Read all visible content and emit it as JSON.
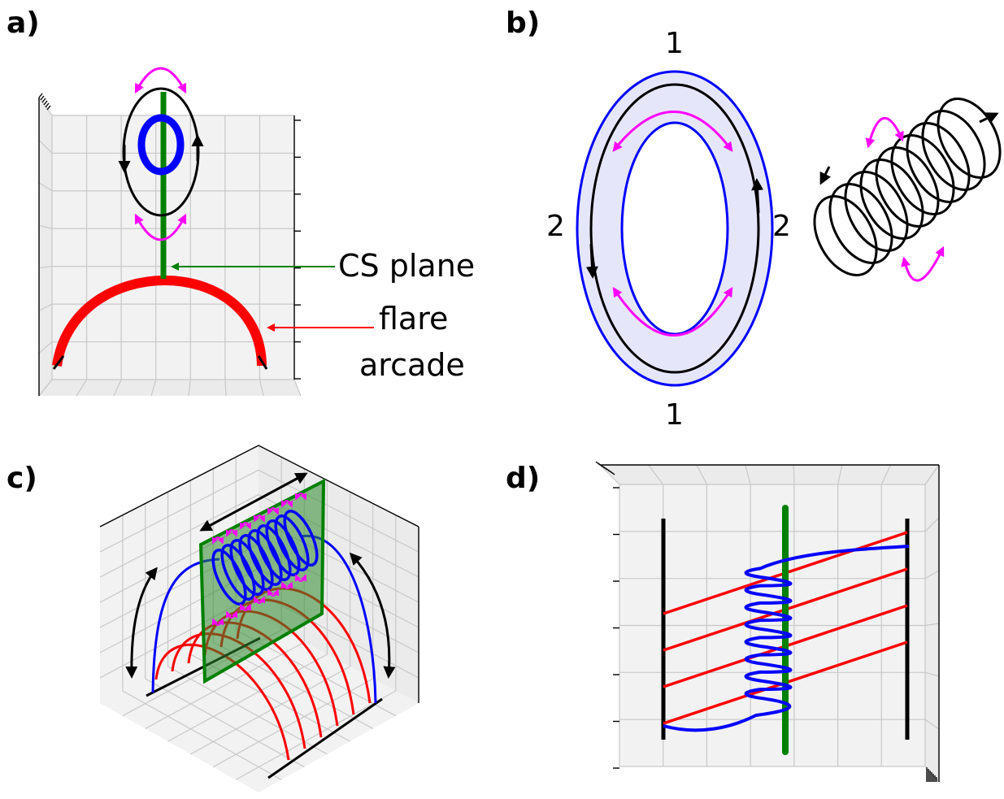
{
  "panels": {
    "a": {
      "label": "a)",
      "cs_label": "CS plane",
      "arcade_label_line1": "flare",
      "arcade_label_line2": "arcade"
    },
    "b": {
      "label": "b)",
      "top_number": "1",
      "bottom_number": "1",
      "left_number": "2",
      "right_number": "2"
    },
    "c": {
      "label": "c)"
    },
    "d": {
      "label": "d)"
    }
  },
  "colors": {
    "flux_rope": "#0000ff",
    "arcade": "#ff0000",
    "cs_plane": "#008000",
    "motion_arrows": "#ff00ff",
    "field_lines": "#000000",
    "ring_fill": "#e6e6fa"
  }
}
